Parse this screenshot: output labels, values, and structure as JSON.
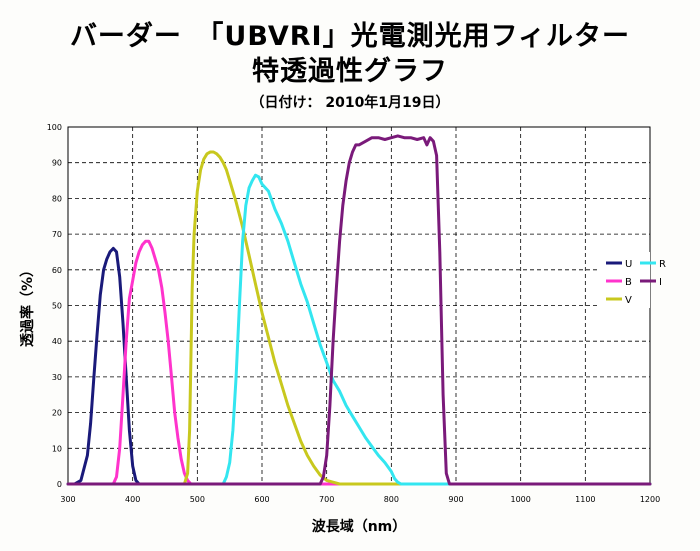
{
  "header": {
    "title_line1": "バーダー　「UBVRI」光電測光用フィルター",
    "title_line2": "特透過性グラフ",
    "subtitle": "（日付け： 2010年1月19日）"
  },
  "chart_data": {
    "type": "line",
    "title": "バーダー　「UBVRI」光電測光用フィルター 特透過性グラフ",
    "subtitle": "（日付け： 2010年1月19日）",
    "xlabel": "波長域（nm）",
    "ylabel": "透過率（%）",
    "xlim": [
      300,
      1200
    ],
    "ylim": [
      0,
      100
    ],
    "xticks": [
      300,
      400,
      500,
      600,
      700,
      800,
      900,
      1000,
      1100,
      1200
    ],
    "yticks": [
      0,
      10,
      20,
      30,
      40,
      50,
      60,
      70,
      80,
      90,
      100
    ],
    "grid": true,
    "legend_position": "right",
    "series": [
      {
        "name": "U",
        "color": "#1a1a7a",
        "x": [
          300,
          310,
          320,
          330,
          335,
          340,
          345,
          350,
          355,
          360,
          365,
          370,
          375,
          380,
          385,
          390,
          395,
          400,
          405,
          410,
          420,
          1200
        ],
        "y": [
          0,
          0,
          1,
          8,
          17,
          30,
          42,
          53,
          60,
          63,
          65,
          66,
          65,
          58,
          45,
          30,
          15,
          5,
          1,
          0,
          0,
          0
        ]
      },
      {
        "name": "B",
        "color": "#ff33cc",
        "x": [
          300,
          370,
          375,
          380,
          385,
          390,
          395,
          400,
          405,
          410,
          415,
          420,
          425,
          430,
          435,
          440,
          445,
          450,
          455,
          460,
          465,
          470,
          475,
          480,
          485,
          490,
          500,
          1200
        ],
        "y": [
          0,
          0,
          2,
          10,
          25,
          40,
          52,
          57,
          62,
          65,
          67,
          68,
          68,
          66,
          63,
          60,
          55,
          48,
          40,
          30,
          20,
          13,
          7,
          3,
          1,
          0,
          0,
          0
        ]
      },
      {
        "name": "V",
        "color": "#c8c81e",
        "x": [
          300,
          480,
          485,
          488,
          490,
          492,
          495,
          500,
          505,
          510,
          515,
          520,
          525,
          530,
          535,
          540,
          545,
          550,
          560,
          570,
          580,
          590,
          600,
          610,
          620,
          630,
          640,
          650,
          660,
          670,
          680,
          690,
          700,
          710,
          720,
          1200
        ],
        "y": [
          0,
          0,
          3,
          15,
          35,
          55,
          70,
          82,
          88,
          91,
          92.5,
          93,
          93,
          92.5,
          91.5,
          90,
          88,
          85,
          79,
          72,
          64,
          56,
          48,
          41,
          34,
          28,
          22,
          17,
          12,
          8,
          5,
          2.5,
          1,
          0.5,
          0,
          0
        ]
      },
      {
        "name": "R",
        "color": "#33e6f0",
        "x": [
          300,
          540,
          545,
          550,
          555,
          560,
          565,
          570,
          575,
          580,
          585,
          590,
          595,
          600,
          610,
          620,
          630,
          640,
          650,
          660,
          670,
          680,
          690,
          700,
          710,
          720,
          730,
          740,
          750,
          760,
          770,
          780,
          790,
          800,
          805,
          810,
          815,
          820,
          1200
        ],
        "y": [
          0,
          0,
          2,
          6,
          15,
          30,
          50,
          68,
          78,
          83,
          85,
          86.5,
          86,
          84,
          82,
          77,
          73,
          68,
          62,
          56,
          51,
          45,
          39,
          34,
          29,
          26,
          22,
          19,
          16,
          13,
          10.5,
          8,
          6,
          3.5,
          1.5,
          0.5,
          0,
          0,
          0
        ]
      },
      {
        "name": "I",
        "color": "#7a1a7a",
        "x": [
          300,
          690,
          695,
          700,
          705,
          710,
          715,
          720,
          725,
          730,
          735,
          740,
          745,
          750,
          760,
          770,
          780,
          790,
          800,
          810,
          820,
          830,
          840,
          850,
          855,
          860,
          865,
          870,
          875,
          880,
          885,
          890,
          1200
        ],
        "y": [
          0,
          0,
          2,
          8,
          22,
          40,
          55,
          68,
          78,
          85,
          90,
          93,
          95,
          95,
          96,
          97,
          97,
          96.5,
          97,
          97.5,
          97,
          97,
          96.5,
          97,
          95,
          97,
          96,
          92,
          65,
          25,
          3,
          0,
          0
        ]
      }
    ],
    "legend": [
      {
        "label": "U",
        "color": "#1a1a7a"
      },
      {
        "label": "R",
        "color": "#33e6f0"
      },
      {
        "label": "B",
        "color": "#ff33cc"
      },
      {
        "label": "I",
        "color": "#7a1a7a"
      },
      {
        "label": "V",
        "color": "#c8c81e"
      }
    ]
  }
}
